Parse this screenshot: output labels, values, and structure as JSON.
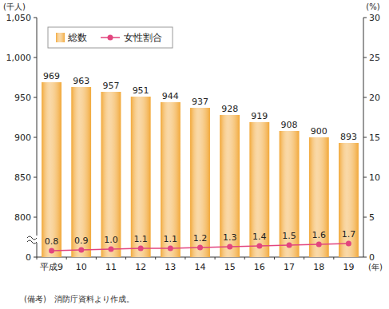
{
  "chart_data": {
    "type": "bar",
    "categories": [
      "平成9",
      "10",
      "11",
      "12",
      "13",
      "14",
      "15",
      "16",
      "17",
      "18",
      "19"
    ],
    "series": [
      {
        "name": "総数",
        "type": "bar",
        "color": "#f2a93b",
        "values": [
          969,
          963,
          957,
          951,
          944,
          937,
          928,
          919,
          908,
          900,
          893
        ]
      },
      {
        "name": "女性割合",
        "type": "line",
        "axis": "y2",
        "color": "#e2457e",
        "marker": "circle",
        "values": [
          0.8,
          0.9,
          1.0,
          1.1,
          1.1,
          1.2,
          1.3,
          1.4,
          1.5,
          1.6,
          1.7
        ],
        "value_labels": [
          "0.8",
          "0.9",
          "1.0",
          "1.1",
          "1.1",
          "1.2",
          "1.3",
          "1.4",
          "1.5",
          "1.6",
          "1.7"
        ]
      }
    ],
    "ylim": [
      0,
      1050
    ],
    "yticks": [
      0,
      800,
      850,
      900,
      950,
      {
        "value": 1000,
        "label": "1,000"
      },
      {
        "value": 1050,
        "label": "1,050"
      }
    ],
    "y_break": [
      0,
      800
    ],
    "y2lim": [
      0,
      30
    ],
    "y2ticks": [
      0,
      5,
      10,
      15,
      20,
      25,
      30
    ],
    "y_label": "(千人)",
    "y2_label": "(%)",
    "x_label": "(年)",
    "note": "(備考)　消防庁資料より作成。",
    "legend": "top-left",
    "data_labels": true,
    "grid": false
  }
}
